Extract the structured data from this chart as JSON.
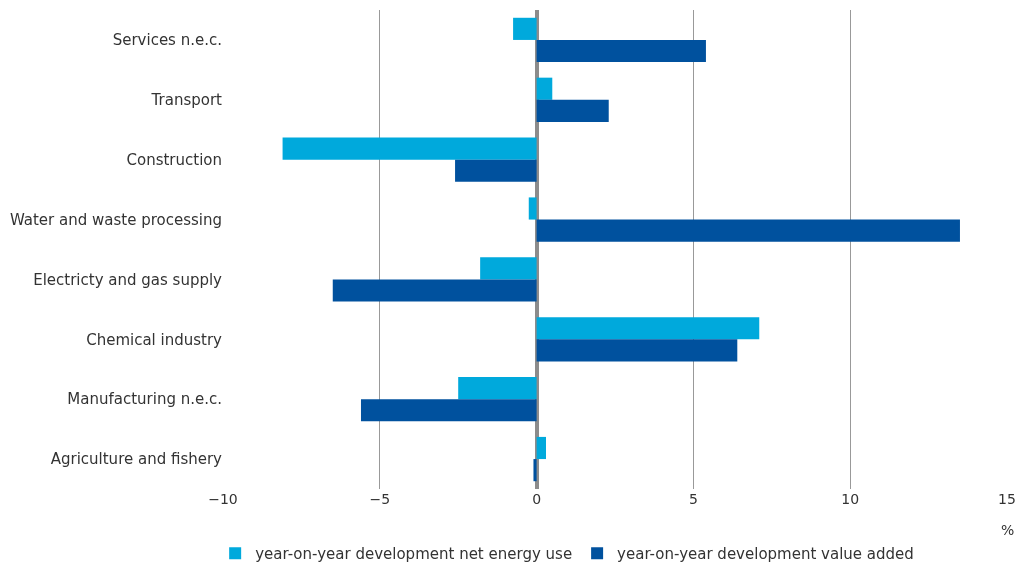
{
  "chart_data": {
    "type": "bar",
    "orientation": "horizontal",
    "xlabel": "%",
    "categories": [
      "Services n.e.c.",
      "Transport",
      "Construction",
      "Water and waste processing",
      "Electricty and gas supply",
      "Chemical industry",
      "Manufacturing n.e.c.",
      "Agriculture and fishery"
    ],
    "series": [
      {
        "name": "year-on-year development net energy use",
        "color": "#00a9dc",
        "values": [
          -0.75,
          0.5,
          -8.1,
          -0.25,
          -1.8,
          7.1,
          -2.5,
          0.3
        ]
      },
      {
        "name": "year-on-year development value added",
        "color": "#00519e",
        "values": [
          5.4,
          2.3,
          -2.6,
          13.5,
          -6.5,
          6.4,
          -5.6,
          -0.1
        ]
      }
    ],
    "xlim": [
      -10,
      15
    ],
    "xticks": [
      {
        "value": -10,
        "label": "−10"
      },
      {
        "value": -5,
        "label": "−5"
      },
      0,
      5,
      10,
      15
    ],
    "grid": "x",
    "legend": "bottom"
  }
}
